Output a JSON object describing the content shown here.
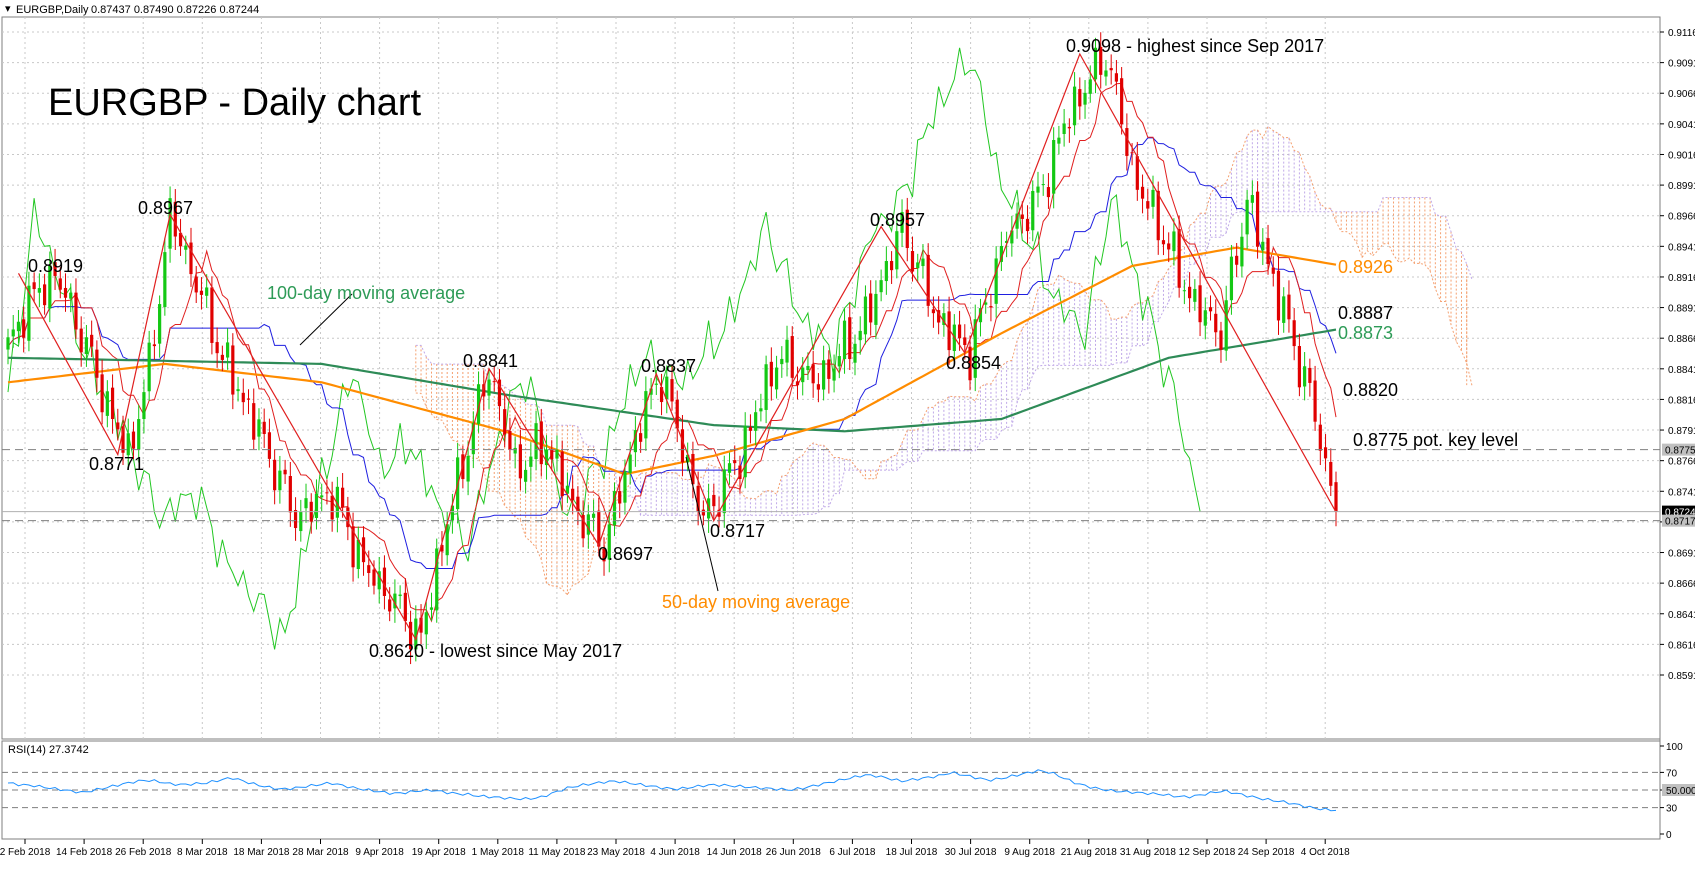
{
  "header": {
    "symbol_label": "EURGBP,Daily",
    "ohlc": "0.87437 0.87490 0.87226 0.87244"
  },
  "title": "EURGBP - Daily chart",
  "rsi": {
    "label": "RSI(14) 27.3742",
    "levels": [
      100,
      70,
      50,
      30,
      0
    ],
    "level_labels": [
      "100",
      "70",
      "50.0000",
      "30",
      "0"
    ],
    "colors": {
      "line": "#1e90ff",
      "level": "#7f7f7f",
      "tag_bg": "#c0c0c0"
    }
  },
  "annotations": [
    {
      "name": "label-0-8919",
      "text": "0.8919"
    },
    {
      "name": "label-0-8967",
      "text": "0.8967"
    },
    {
      "name": "label-0-8771",
      "text": "0.8771"
    },
    {
      "name": "label-100dma",
      "text": "100-day moving average"
    },
    {
      "name": "label-0-8841",
      "text": "0.8841"
    },
    {
      "name": "label-0-8837",
      "text": "0.8837"
    },
    {
      "name": "label-0-8697",
      "text": "0.8697"
    },
    {
      "name": "label-0-8717",
      "text": "0.8717"
    },
    {
      "name": "label-50dma",
      "text": "50-day moving average"
    },
    {
      "name": "label-0-8620",
      "text": "0.8620 - lowest since May 2017"
    },
    {
      "name": "label-0-8957",
      "text": "0.8957"
    },
    {
      "name": "label-0-8854",
      "text": "0.8854"
    },
    {
      "name": "label-0-9098",
      "text": "0.9098 - highest since Sep 2017"
    },
    {
      "name": "label-0-8926",
      "text": "0.8926"
    },
    {
      "name": "label-0-8887",
      "text": "0.8887"
    },
    {
      "name": "label-0-8873",
      "text": "0.8873"
    },
    {
      "name": "label-0-8820",
      "text": "0.8820"
    },
    {
      "name": "label-0-8775",
      "text": "0.8775 pot. key level"
    }
  ],
  "price_tags": [
    {
      "value": 0.8775,
      "text": "0.87750",
      "bg": "#c0c0c0",
      "color": "#000000"
    },
    {
      "value": 0.87244,
      "text": "0.87244",
      "bg": "#000000",
      "color": "#ffffff"
    },
    {
      "value": 0.8717,
      "text": "0.87170",
      "bg": "#c0c0c0",
      "color": "#000000"
    }
  ],
  "chart_data": {
    "type": "candlestick",
    "symbol": "EURGBP",
    "timeframe": "Daily",
    "ylim": [
      0.8591,
      0.9116
    ],
    "y_ticks": [
      0.9116,
      0.9091,
      0.9066,
      0.9041,
      0.9016,
      0.8991,
      0.8966,
      0.8941,
      0.8916,
      0.8891,
      0.8866,
      0.8841,
      0.8816,
      0.8791,
      0.8766,
      0.8741,
      0.8716,
      0.8691,
      0.8666,
      0.8641,
      0.8616,
      0.8591
    ],
    "y_tick_labels": [
      "0.91160",
      "0.90910",
      "0.90660",
      "0.90410",
      "0.90160",
      "0.89910",
      "0.89660",
      "0.89410",
      "0.89160",
      "0.88910",
      "0.88660",
      "0.88410",
      "0.88160",
      "0.87910",
      "0.87660",
      "0.87410",
      "0.87160",
      "0.86910",
      "0.86660",
      "0.86410",
      "0.86160",
      "0.85910"
    ],
    "x_tick_labels": [
      "2 Feb 2018",
      "14 Feb 2018",
      "26 Feb 2018",
      "8 Mar 2018",
      "18 Mar 2018",
      "28 Mar 2018",
      "9 Apr 2018",
      "19 Apr 2018",
      "1 May 2018",
      "11 May 2018",
      "23 May 2018",
      "4 Jun 2018",
      "14 Jun 2018",
      "26 Jun 2018",
      "6 Jul 2018",
      "18 Jul 2018",
      "30 Jul 2018",
      "9 Aug 2018",
      "21 Aug 2018",
      "31 Aug 2018",
      "12 Sep 2018",
      "24 Sep 2018",
      "4 Oct 2018"
    ],
    "close_anchors": [
      0.8855,
      0.889,
      0.8919,
      0.887,
      0.88,
      0.8771,
      0.884,
      0.8967,
      0.89,
      0.885,
      0.879,
      0.872,
      0.874,
      0.868,
      0.865,
      0.862,
      0.87,
      0.878,
      0.8841,
      0.876,
      0.878,
      0.873,
      0.8697,
      0.88,
      0.8837,
      0.8717,
      0.877,
      0.885,
      0.883,
      0.888,
      0.8957,
      0.888,
      0.8854,
      0.895,
      0.898,
      0.905,
      0.9098,
      0.899,
      0.896,
      0.89,
      0.887,
      0.898,
      0.89,
      0.882,
      0.8724
    ],
    "close_anchor_times": [
      0,
      3,
      9,
      14,
      20,
      23,
      27,
      31,
      37,
      41,
      48,
      55,
      62,
      68,
      74,
      79,
      83,
      88,
      92,
      97,
      103,
      108,
      114,
      121,
      125,
      133,
      140,
      147,
      155,
      164,
      171,
      178,
      184,
      191,
      197,
      203,
      210,
      216,
      220,
      226,
      232,
      237,
      243,
      249,
      254
    ],
    "series": [
      {
        "name": "100-day moving average",
        "color": "#2e8b57",
        "key_values": [
          [
            0,
            0.885
          ],
          [
            60,
            0.8845
          ],
          [
            95,
            0.882
          ],
          [
            135,
            0.8795
          ],
          [
            160,
            0.879
          ],
          [
            190,
            0.88
          ],
          [
            222,
            0.885
          ],
          [
            254,
            0.8873
          ]
        ]
      },
      {
        "name": "50-day moving average",
        "color": "#ff8c00",
        "key_values": [
          [
            0,
            0.883
          ],
          [
            30,
            0.8845
          ],
          [
            60,
            0.883
          ],
          [
            95,
            0.879
          ],
          [
            118,
            0.8755
          ],
          [
            135,
            0.877
          ],
          [
            160,
            0.88
          ],
          [
            190,
            0.887
          ],
          [
            215,
            0.8925
          ],
          [
            235,
            0.894
          ],
          [
            254,
            0.8926
          ]
        ]
      }
    ],
    "recent_values": {
      "tenkan_sen": 0.882,
      "kijun_sen": 0.8887,
      "ma_100": 0.8873,
      "ma_50": 0.8926,
      "key_level": 0.8775,
      "last_close": 0.87244
    },
    "zigzag": [
      [
        2,
        0.8919
      ],
      [
        21,
        0.8771
      ],
      [
        31,
        0.8967
      ],
      [
        78,
        0.862
      ],
      [
        92,
        0.8841
      ],
      [
        113,
        0.8697
      ],
      [
        124,
        0.8837
      ],
      [
        135,
        0.8717
      ],
      [
        167,
        0.8957
      ],
      [
        183,
        0.8854
      ],
      [
        205,
        0.9098
      ],
      [
        254,
        0.8724
      ]
    ],
    "rsi_values": [
      58,
      56,
      55,
      53,
      51,
      49,
      47,
      50,
      53,
      56,
      59,
      61,
      60,
      57,
      56,
      57,
      58,
      61,
      64,
      60,
      56,
      53,
      51,
      52,
      54,
      56,
      58,
      55,
      52,
      50,
      48,
      46,
      47,
      49,
      50,
      48,
      46,
      45,
      43,
      42,
      41,
      40,
      40,
      42,
      47,
      52,
      55,
      57,
      59,
      60,
      58,
      56,
      54,
      52,
      51,
      53,
      55,
      56,
      55,
      54,
      53,
      52,
      51,
      50,
      52,
      55,
      58,
      61,
      64,
      67,
      66,
      63,
      60,
      62,
      64,
      66,
      70,
      67,
      64,
      61,
      63,
      66,
      69,
      72,
      70,
      64,
      58,
      54,
      51,
      49,
      48,
      47,
      46,
      45,
      43,
      42,
      44,
      47,
      49,
      46,
      43,
      40,
      38,
      36,
      33,
      30,
      28,
      27
    ],
    "grid": true,
    "legend": "none"
  }
}
